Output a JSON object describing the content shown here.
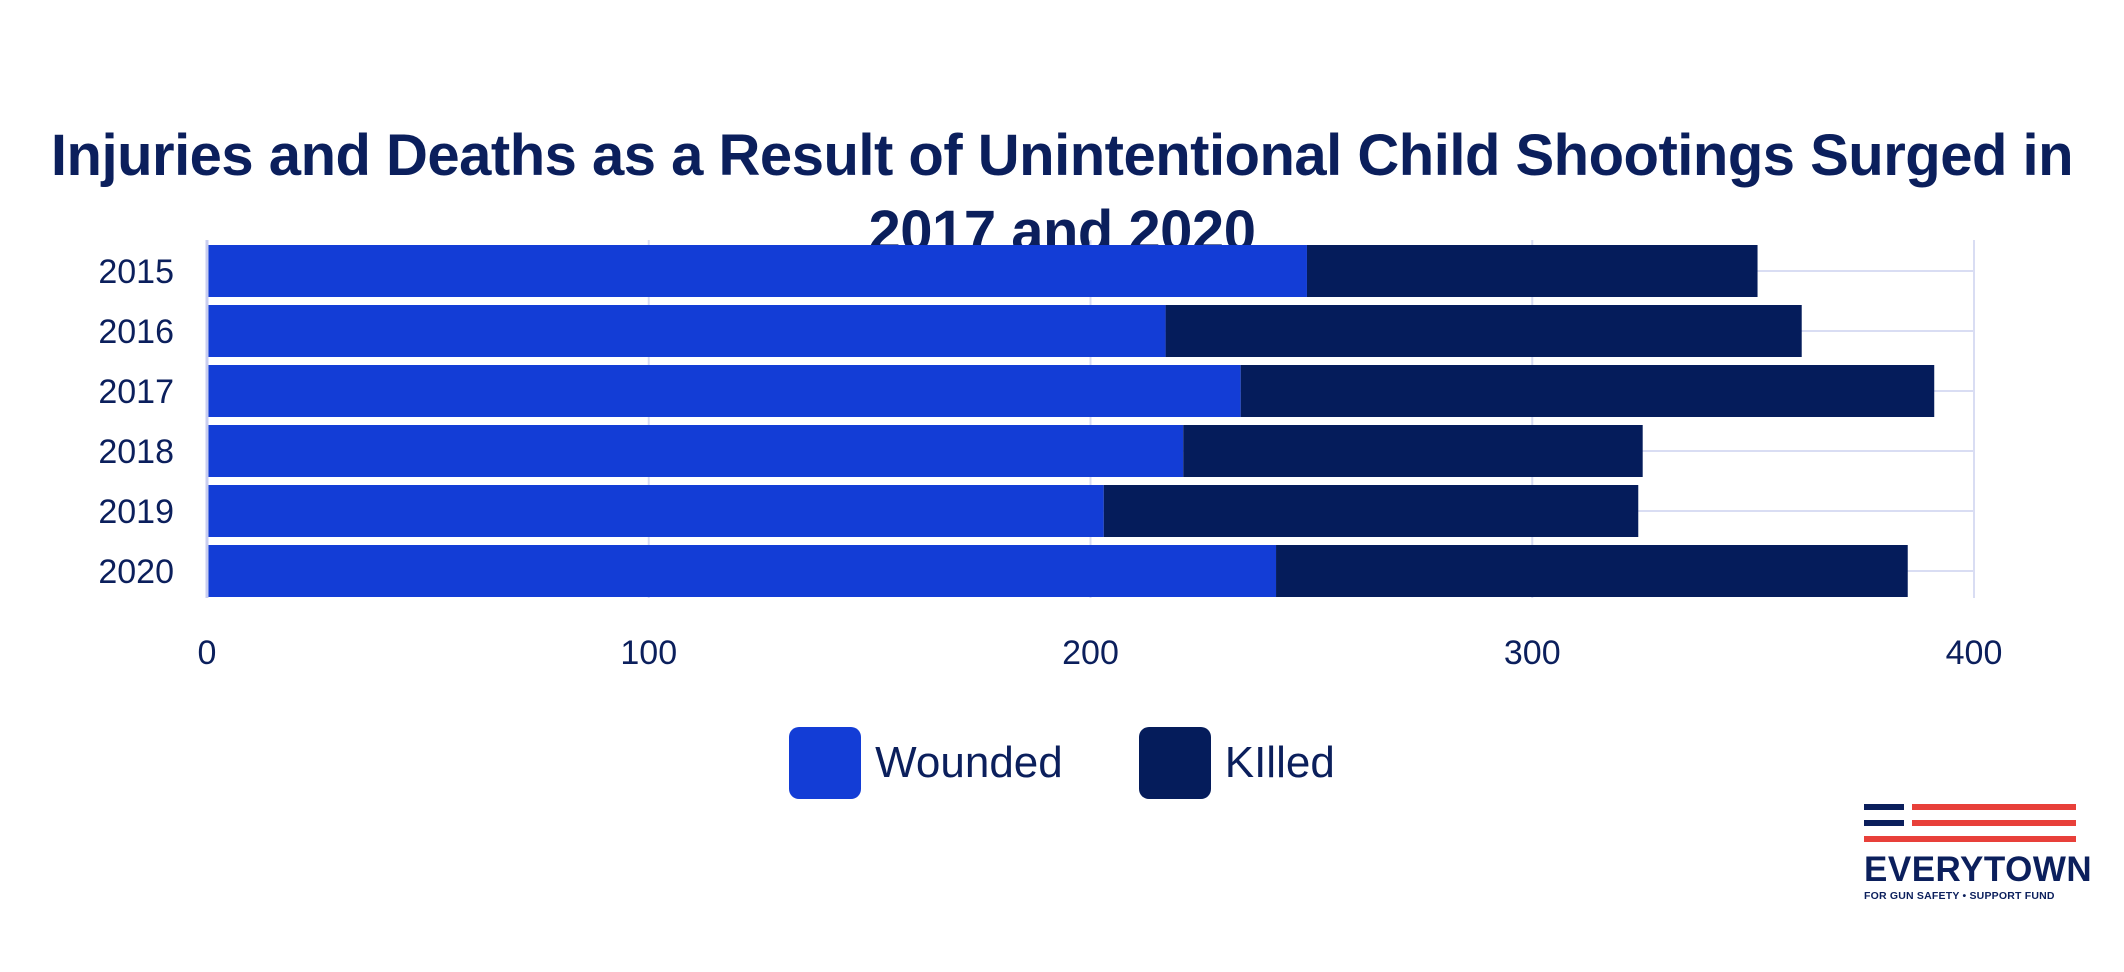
{
  "chart_data": {
    "type": "bar",
    "orientation": "horizontal",
    "stacked": true,
    "title": "Injuries and Deaths as a Result of Unintentional Child Shootings Surged in 2017 and 2020",
    "categories": [
      "2015",
      "2016",
      "2017",
      "2018",
      "2019",
      "2020"
    ],
    "series": [
      {
        "name": "Wounded",
        "color": "#133dd6",
        "values": [
          249,
          217,
          234,
          221,
          203,
          242
        ]
      },
      {
        "name": "KIlled",
        "color": "#051c5b",
        "values": [
          102,
          144,
          157,
          104,
          121,
          143
        ]
      }
    ],
    "xticks": [
      "0",
      "100",
      "200",
      "300",
      "400"
    ],
    "xlim": [
      0,
      400
    ],
    "grid": true,
    "legend_position": "bottom"
  },
  "logo": {
    "name": "EVERYTOWN",
    "subtitle": "FOR GUN SAFETY • SUPPORT FUND",
    "colors": {
      "navy": "#0b1f5c",
      "red": "#e8403a"
    }
  }
}
